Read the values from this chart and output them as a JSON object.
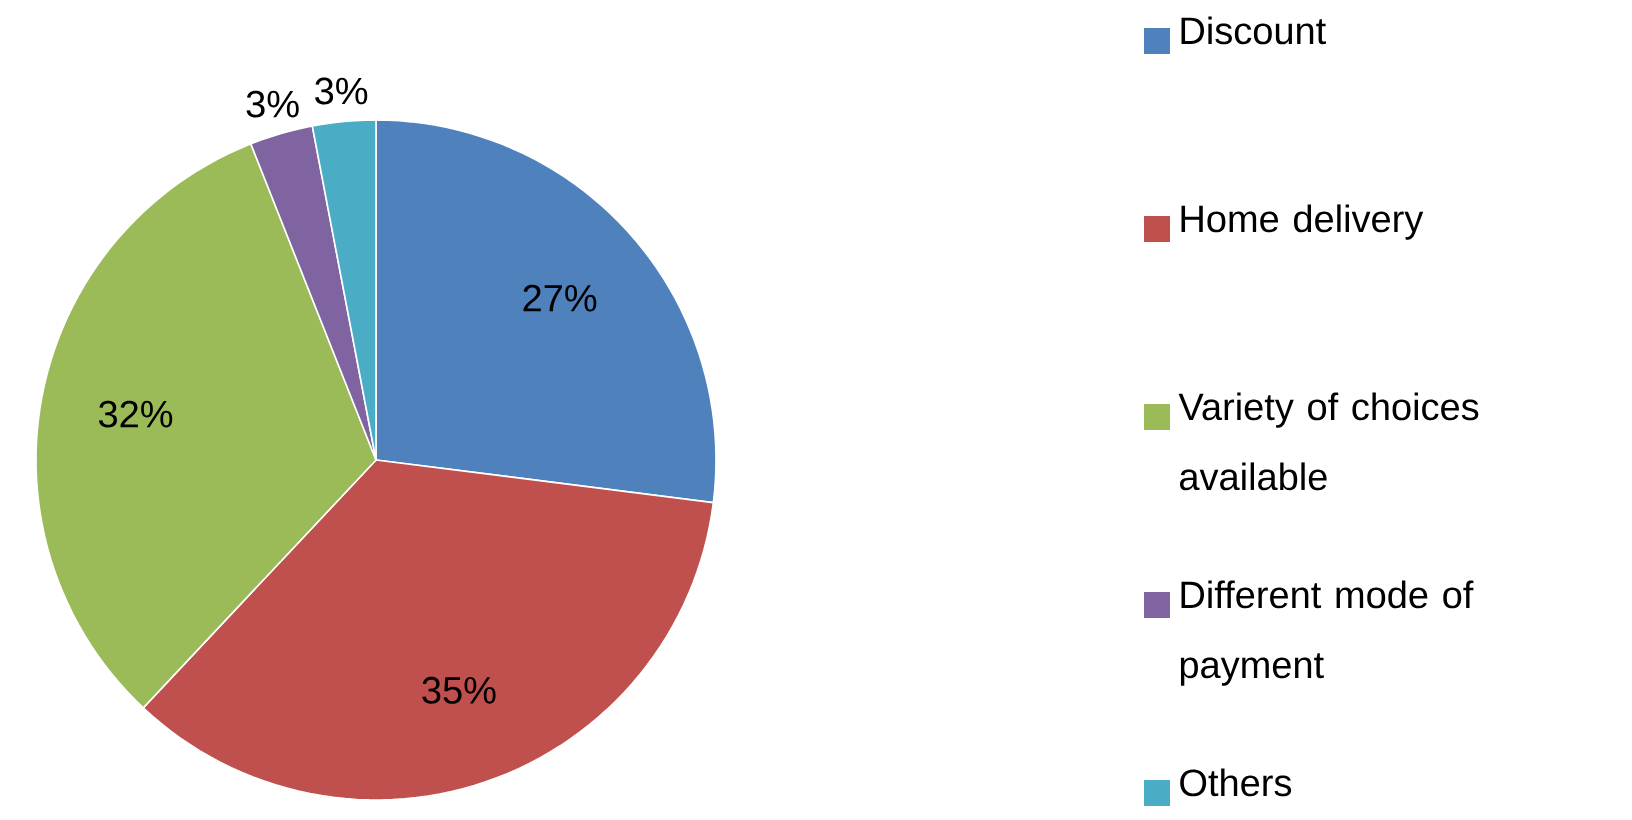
{
  "chart_data": {
    "type": "pie",
    "categories": [
      "Discount",
      "Home delivery",
      "Variety of choices available",
      "Different mode of payment",
      "Others"
    ],
    "values": [
      27,
      35,
      32,
      3,
      3
    ],
    "colors": [
      "#4f81bd",
      "#c0504d",
      "#9bbb59",
      "#8064a2",
      "#4bacc6"
    ],
    "value_labels": [
      "27%",
      "35%",
      "32%",
      "3%",
      "3%"
    ],
    "legend": "right"
  }
}
